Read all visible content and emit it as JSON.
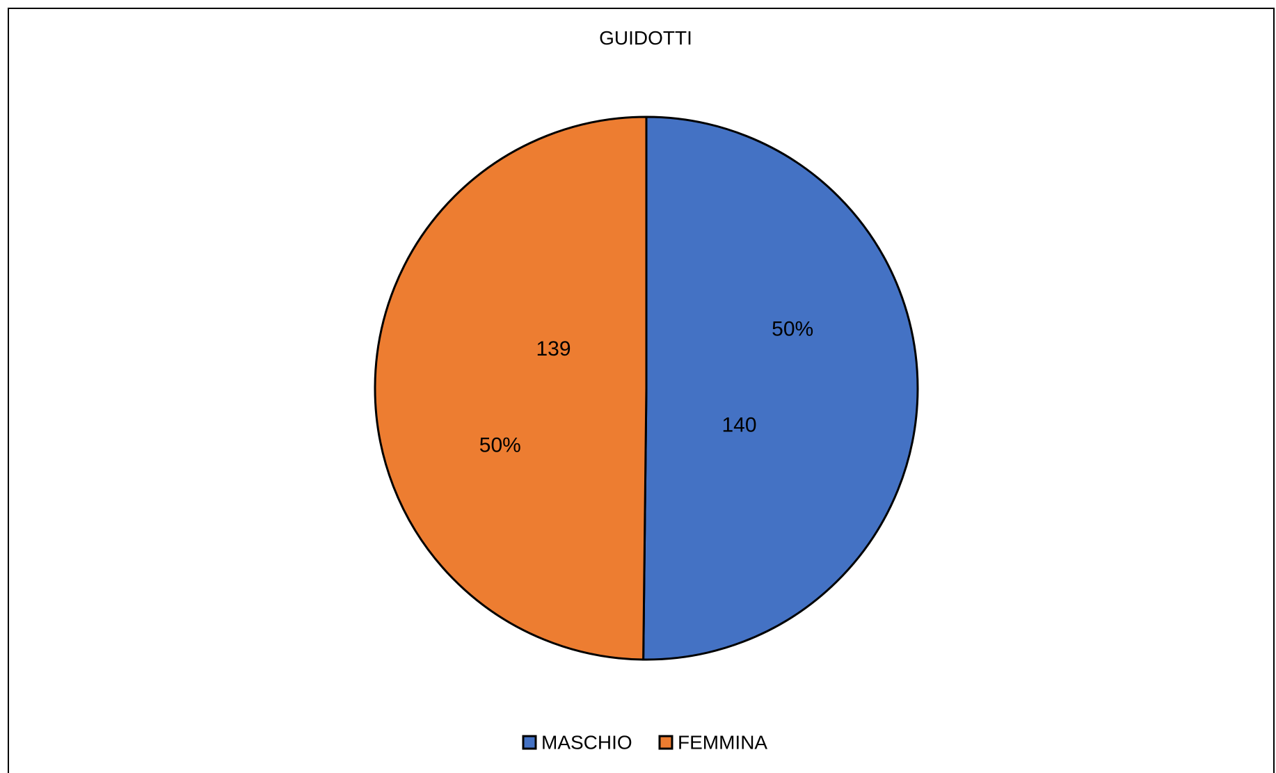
{
  "chart_data": {
    "type": "pie",
    "title": "GUIDOTTI",
    "categories": [
      "MASCHIO",
      "FEMMINA"
    ],
    "values": [
      140,
      139
    ],
    "percent_labels": [
      "50%",
      "50%"
    ],
    "colors": [
      "#4472C4",
      "#ED7D31"
    ],
    "legend_position": "bottom",
    "start_angle_deg": 0,
    "direction": "clockwise"
  }
}
